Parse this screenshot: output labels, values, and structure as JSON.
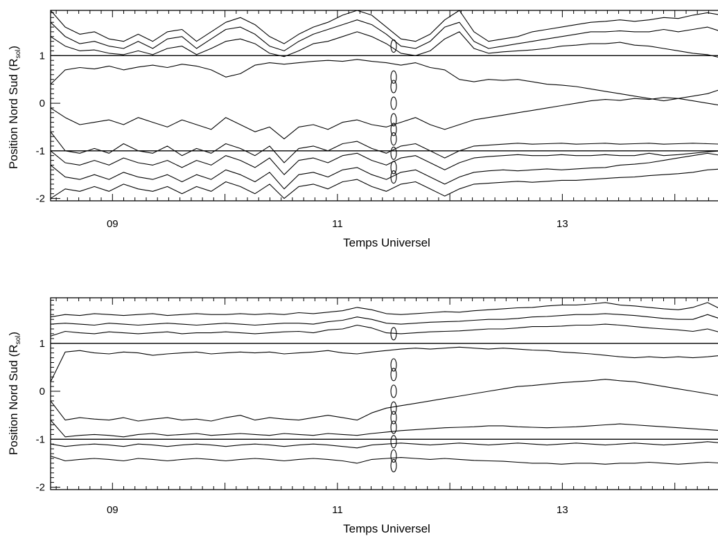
{
  "chart_data": [
    {
      "type": "contour",
      "panel": "top",
      "xlabel": "Temps Universel",
      "ylabel": "Position Nord Sud (R",
      "ylabel_subscript": "sol",
      "ylabel_suffix": ")",
      "xlim": [
        8.45,
        14.55
      ],
      "ylim": [
        -2.05,
        1.95
      ],
      "x_ticks": [
        9,
        11,
        13
      ],
      "x_tick_labels": [
        "09",
        "11",
        "13"
      ],
      "y_ticks": [
        -2,
        -1,
        0,
        1
      ],
      "y_tick_labels": [
        "-2",
        "-1",
        "0",
        "1"
      ],
      "reference_lines_y": [
        1,
        -1
      ],
      "contours": [
        {
          "name": "level-outer-north",
          "y": [
            1.95,
            1.6,
            1.45,
            1.5,
            1.35,
            1.3,
            1.45,
            1.3,
            1.5,
            1.55,
            1.3,
            1.5,
            1.7,
            1.8,
            1.65,
            1.4,
            1.25,
            1.45,
            1.6,
            1.7,
            1.85,
            1.95,
            1.85,
            1.6,
            1.35,
            1.3,
            1.45,
            1.75,
            1.95,
            1.5,
            1.3,
            1.35,
            1.4,
            1.5,
            1.55,
            1.6,
            1.65,
            1.7,
            1.72,
            1.75,
            1.72,
            1.75,
            1.8,
            1.78,
            1.85,
            1.9,
            1.85,
            1.9
          ]
        },
        {
          "name": "level-mid-north",
          "y": [
            1.7,
            1.4,
            1.25,
            1.3,
            1.2,
            1.15,
            1.3,
            1.15,
            1.35,
            1.4,
            1.15,
            1.35,
            1.55,
            1.6,
            1.45,
            1.2,
            1.1,
            1.3,
            1.45,
            1.55,
            1.65,
            1.75,
            1.65,
            1.45,
            1.2,
            1.15,
            1.3,
            1.6,
            1.7,
            1.3,
            1.15,
            1.2,
            1.25,
            1.3,
            1.35,
            1.4,
            1.45,
            1.5,
            1.5,
            1.52,
            1.5,
            1.5,
            1.55,
            1.5,
            1.55,
            1.6,
            1.5,
            1.55
          ]
        },
        {
          "name": "level-inner-north",
          "y": [
            1.4,
            1.2,
            1.1,
            1.12,
            1.05,
            1.02,
            1.1,
            1.02,
            1.15,
            1.2,
            1.02,
            1.15,
            1.3,
            1.35,
            1.25,
            1.05,
            0.98,
            1.1,
            1.25,
            1.3,
            1.4,
            1.5,
            1.4,
            1.25,
            1.05,
            1.0,
            1.1,
            1.35,
            1.5,
            1.15,
            1.05,
            1.08,
            1.1,
            1.12,
            1.15,
            1.2,
            1.22,
            1.25,
            1.25,
            1.28,
            1.22,
            1.2,
            1.15,
            1.1,
            1.05,
            1.02,
            0.95,
            1.0
          ]
        },
        {
          "name": "level-core-north",
          "y": [
            0.4,
            0.7,
            0.75,
            0.72,
            0.78,
            0.7,
            0.76,
            0.8,
            0.75,
            0.82,
            0.78,
            0.7,
            0.55,
            0.62,
            0.8,
            0.85,
            0.82,
            0.85,
            0.88,
            0.9,
            0.88,
            0.92,
            0.88,
            0.85,
            0.8,
            0.85,
            0.75,
            0.7,
            0.5,
            0.45,
            0.5,
            0.48,
            0.5,
            0.45,
            0.4,
            0.38,
            0.35,
            0.3,
            0.25,
            0.2,
            0.15,
            0.1,
            0.05,
            0.1,
            0.15,
            0.2,
            0.3,
            0.4
          ]
        },
        {
          "name": "level-core-south",
          "y": [
            -0.1,
            -0.3,
            -0.45,
            -0.4,
            -0.35,
            -0.45,
            -0.3,
            -0.4,
            -0.5,
            -0.35,
            -0.45,
            -0.55,
            -0.3,
            -0.45,
            -0.6,
            -0.5,
            -0.75,
            -0.5,
            -0.45,
            -0.55,
            -0.4,
            -0.35,
            -0.45,
            -0.5,
            -0.4,
            -0.3,
            -0.45,
            -0.55,
            -0.45,
            -0.35,
            -0.3,
            -0.25,
            -0.2,
            -0.15,
            -0.1,
            -0.05,
            0.0,
            0.05,
            0.08,
            0.06,
            0.1,
            0.08,
            0.12,
            0.1,
            0.05,
            0.0,
            -0.05,
            -0.1
          ]
        },
        {
          "name": "level-inner-south",
          "y": [
            -0.6,
            -1.0,
            -1.05,
            -0.95,
            -1.05,
            -0.85,
            -1.0,
            -1.05,
            -0.9,
            -1.1,
            -0.95,
            -1.05,
            -0.85,
            -0.95,
            -1.1,
            -0.9,
            -1.25,
            -0.95,
            -0.9,
            -1.0,
            -0.85,
            -0.8,
            -0.95,
            -1.05,
            -0.9,
            -0.85,
            -1.0,
            -1.15,
            -1.0,
            -0.9,
            -0.88,
            -0.86,
            -0.84,
            -0.86,
            -0.85,
            -0.84,
            -0.86,
            -0.85,
            -0.84,
            -0.86,
            -0.85,
            -0.84,
            -0.86,
            -0.85,
            -0.84,
            -0.85,
            -0.86,
            -0.9
          ]
        },
        {
          "name": "level-mid-south",
          "y": [
            -1.0,
            -1.25,
            -1.3,
            -1.2,
            -1.3,
            -1.15,
            -1.25,
            -1.3,
            -1.2,
            -1.35,
            -1.2,
            -1.3,
            -1.1,
            -1.2,
            -1.35,
            -1.15,
            -1.5,
            -1.2,
            -1.15,
            -1.25,
            -1.1,
            -1.05,
            -1.2,
            -1.3,
            -1.15,
            -1.1,
            -1.25,
            -1.4,
            -1.25,
            -1.15,
            -1.12,
            -1.1,
            -1.08,
            -1.1,
            -1.1,
            -1.08,
            -1.1,
            -1.1,
            -1.08,
            -1.1,
            -1.1,
            -1.05,
            -1.1,
            -1.08,
            -1.05,
            -1.02,
            -1.0,
            -1.0
          ]
        },
        {
          "name": "level-outer-south",
          "y": [
            -1.3,
            -1.55,
            -1.6,
            -1.5,
            -1.6,
            -1.45,
            -1.55,
            -1.6,
            -1.5,
            -1.65,
            -1.5,
            -1.6,
            -1.4,
            -1.5,
            -1.65,
            -1.45,
            -1.8,
            -1.5,
            -1.45,
            -1.55,
            -1.4,
            -1.35,
            -1.5,
            -1.6,
            -1.45,
            -1.4,
            -1.55,
            -1.7,
            -1.55,
            -1.45,
            -1.42,
            -1.4,
            -1.42,
            -1.4,
            -1.38,
            -1.4,
            -1.38,
            -1.36,
            -1.35,
            -1.3,
            -1.28,
            -1.25,
            -1.2,
            -1.15,
            -1.1,
            -1.05,
            -1.1,
            -1.05
          ]
        },
        {
          "name": "level-edge-south",
          "y": [
            -2.0,
            -1.8,
            -1.85,
            -1.75,
            -1.85,
            -1.7,
            -1.8,
            -1.85,
            -1.75,
            -1.9,
            -1.75,
            -1.85,
            -1.65,
            -1.75,
            -1.9,
            -1.7,
            -2.0,
            -1.75,
            -1.7,
            -1.8,
            -1.65,
            -1.6,
            -1.75,
            -1.85,
            -1.7,
            -1.65,
            -1.8,
            -1.95,
            -1.8,
            -1.7,
            -1.68,
            -1.66,
            -1.64,
            -1.66,
            -1.64,
            -1.62,
            -1.62,
            -1.6,
            -1.58,
            -1.56,
            -1.55,
            -1.52,
            -1.5,
            -1.48,
            -1.45,
            -1.4,
            -1.38,
            -1.35
          ]
        }
      ]
    },
    {
      "type": "contour",
      "panel": "bottom",
      "xlabel": "Temps Universel",
      "ylabel": "Position Nord Sud (R",
      "ylabel_subscript": "sol",
      "ylabel_suffix": ")",
      "xlim": [
        8.45,
        14.55
      ],
      "ylim": [
        -2.05,
        1.95
      ],
      "x_ticks": [
        9,
        11,
        13
      ],
      "x_tick_labels": [
        "09",
        "11",
        "13"
      ],
      "y_ticks": [
        -2,
        -1,
        0,
        1
      ],
      "y_tick_labels": [
        "-2",
        "-1",
        "0",
        "1"
      ],
      "reference_lines_y": [
        1,
        -1
      ],
      "contours": [
        {
          "name": "level-outer-north",
          "y": [
            1.55,
            1.6,
            1.58,
            1.62,
            1.6,
            1.58,
            1.6,
            1.62,
            1.58,
            1.6,
            1.62,
            1.6,
            1.6,
            1.62,
            1.6,
            1.62,
            1.6,
            1.64,
            1.62,
            1.65,
            1.68,
            1.75,
            1.7,
            1.62,
            1.6,
            1.62,
            1.64,
            1.66,
            1.65,
            1.68,
            1.7,
            1.72,
            1.74,
            1.75,
            1.78,
            1.8,
            1.8,
            1.82,
            1.85,
            1.8,
            1.78,
            1.75,
            1.72,
            1.7,
            1.75,
            1.85,
            1.7,
            1.75
          ]
        },
        {
          "name": "level-mid-north",
          "y": [
            1.4,
            1.42,
            1.4,
            1.38,
            1.42,
            1.4,
            1.38,
            1.4,
            1.42,
            1.4,
            1.38,
            1.4,
            1.42,
            1.4,
            1.38,
            1.4,
            1.42,
            1.42,
            1.4,
            1.45,
            1.48,
            1.55,
            1.5,
            1.42,
            1.4,
            1.42,
            1.44,
            1.45,
            1.46,
            1.48,
            1.5,
            1.5,
            1.52,
            1.55,
            1.56,
            1.58,
            1.6,
            1.6,
            1.62,
            1.6,
            1.58,
            1.55,
            1.52,
            1.5,
            1.5,
            1.6,
            1.5,
            1.52
          ]
        },
        {
          "name": "level-inner-north",
          "y": [
            1.15,
            1.25,
            1.22,
            1.2,
            1.24,
            1.22,
            1.2,
            1.22,
            1.24,
            1.2,
            1.22,
            1.22,
            1.24,
            1.22,
            1.2,
            1.22,
            1.24,
            1.25,
            1.22,
            1.28,
            1.3,
            1.38,
            1.32,
            1.22,
            1.2,
            1.22,
            1.24,
            1.25,
            1.26,
            1.28,
            1.3,
            1.3,
            1.32,
            1.35,
            1.35,
            1.36,
            1.38,
            1.38,
            1.4,
            1.38,
            1.35,
            1.32,
            1.3,
            1.28,
            1.25,
            1.3,
            1.22,
            1.25
          ]
        },
        {
          "name": "level-core-north",
          "y": [
            0.2,
            0.82,
            0.85,
            0.8,
            0.78,
            0.82,
            0.8,
            0.75,
            0.78,
            0.8,
            0.82,
            0.78,
            0.8,
            0.82,
            0.8,
            0.82,
            0.78,
            0.8,
            0.82,
            0.85,
            0.8,
            0.78,
            0.82,
            0.85,
            0.88,
            0.9,
            0.88,
            0.9,
            0.92,
            0.9,
            0.88,
            0.9,
            0.88,
            0.86,
            0.85,
            0.82,
            0.8,
            0.78,
            0.75,
            0.72,
            0.7,
            0.72,
            0.7,
            0.72,
            0.7,
            0.72,
            0.75,
            0.8
          ]
        },
        {
          "name": "level-core-south",
          "y": [
            -0.2,
            -0.6,
            -0.55,
            -0.58,
            -0.6,
            -0.55,
            -0.62,
            -0.58,
            -0.55,
            -0.6,
            -0.58,
            -0.62,
            -0.55,
            -0.5,
            -0.6,
            -0.55,
            -0.58,
            -0.6,
            -0.55,
            -0.5,
            -0.55,
            -0.6,
            -0.45,
            -0.35,
            -0.3,
            -0.25,
            -0.2,
            -0.15,
            -0.1,
            -0.05,
            0.0,
            0.05,
            0.1,
            0.12,
            0.15,
            0.18,
            0.2,
            0.22,
            0.25,
            0.22,
            0.2,
            0.15,
            0.1,
            0.05,
            0.0,
            -0.05,
            -0.1,
            -0.15
          ]
        },
        {
          "name": "level-inner-south",
          "y": [
            -0.6,
            -0.95,
            -0.92,
            -0.9,
            -0.92,
            -0.95,
            -0.9,
            -0.88,
            -0.92,
            -0.9,
            -0.88,
            -0.92,
            -0.9,
            -0.88,
            -0.9,
            -0.92,
            -0.88,
            -0.9,
            -0.92,
            -0.88,
            -0.9,
            -0.92,
            -0.88,
            -0.85,
            -0.82,
            -0.8,
            -0.78,
            -0.76,
            -0.75,
            -0.74,
            -0.72,
            -0.72,
            -0.74,
            -0.75,
            -0.76,
            -0.75,
            -0.74,
            -0.72,
            -0.7,
            -0.68,
            -0.7,
            -0.72,
            -0.74,
            -0.76,
            -0.78,
            -0.8,
            -0.82,
            -0.85
          ]
        },
        {
          "name": "level-mid-south",
          "y": [
            -1.1,
            -1.15,
            -1.12,
            -1.1,
            -1.12,
            -1.15,
            -1.1,
            -1.12,
            -1.15,
            -1.12,
            -1.1,
            -1.12,
            -1.15,
            -1.12,
            -1.1,
            -1.12,
            -1.15,
            -1.12,
            -1.1,
            -1.12,
            -1.15,
            -1.18,
            -1.12,
            -1.1,
            -1.08,
            -1.1,
            -1.12,
            -1.1,
            -1.08,
            -1.1,
            -1.12,
            -1.1,
            -1.08,
            -1.1,
            -1.12,
            -1.1,
            -1.08,
            -1.1,
            -1.12,
            -1.1,
            -1.08,
            -1.1,
            -1.12,
            -1.1,
            -1.08,
            -1.05,
            -1.08,
            -1.1
          ]
        },
        {
          "name": "level-outer-south",
          "y": [
            -1.35,
            -1.45,
            -1.42,
            -1.4,
            -1.42,
            -1.45,
            -1.4,
            -1.42,
            -1.45,
            -1.42,
            -1.4,
            -1.42,
            -1.45,
            -1.42,
            -1.4,
            -1.42,
            -1.45,
            -1.42,
            -1.4,
            -1.42,
            -1.45,
            -1.5,
            -1.42,
            -1.4,
            -1.38,
            -1.4,
            -1.42,
            -1.4,
            -1.42,
            -1.44,
            -1.45,
            -1.46,
            -1.48,
            -1.5,
            -1.5,
            -1.52,
            -1.5,
            -1.5,
            -1.52,
            -1.5,
            -1.5,
            -1.48,
            -1.5,
            -1.52,
            -1.5,
            -1.48,
            -1.5,
            -1.52
          ]
        }
      ]
    }
  ]
}
